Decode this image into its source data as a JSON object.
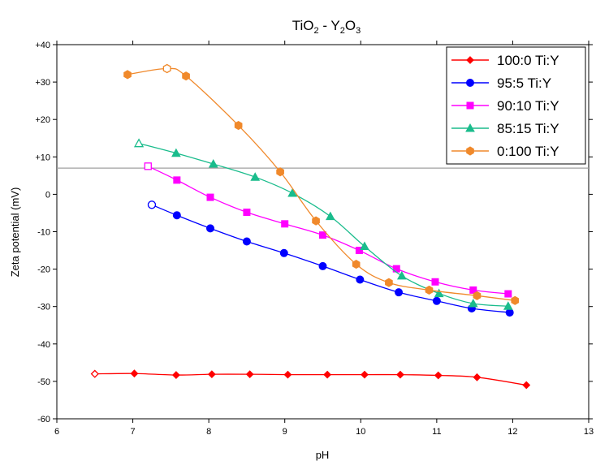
{
  "chart_data": {
    "type": "line",
    "title": {
      "base1": "TiO",
      "sub1": "2",
      "mid": " - Y",
      "sub2": "2",
      "mid2": "O",
      "sub3": "3"
    },
    "xlabel": "pH",
    "ylabel": "Zeta potential (mV)",
    "xlim": [
      6,
      13
    ],
    "ylim": [
      -60,
      40
    ],
    "xticks": [
      6,
      7,
      8,
      9,
      10,
      11,
      12,
      13
    ],
    "yticks": [
      -60,
      -50,
      -40,
      -30,
      -20,
      -10,
      0,
      10,
      20,
      30,
      40
    ],
    "ytick_labels": [
      "-60",
      "-50",
      "-40",
      "-30",
      "-20",
      "-10",
      "0",
      "+10",
      "+20",
      "+30",
      "+40"
    ],
    "reference_line_y": 7,
    "legend_position": "top-right",
    "series": [
      {
        "name": "100:0 Ti:Y",
        "color": "#ff0000",
        "marker": "diamond",
        "x": [
          6.5,
          7.02,
          7.57,
          8.04,
          8.54,
          9.04,
          9.56,
          10.05,
          10.52,
          11.02,
          11.53,
          12.18
        ],
        "y": [
          -48.0,
          -47.9,
          -48.3,
          -48.1,
          -48.1,
          -48.2,
          -48.2,
          -48.2,
          -48.2,
          -48.4,
          -48.9,
          -51.0
        ],
        "open_first": true
      },
      {
        "name": "95:5 Ti:Y",
        "color": "#0000ff",
        "marker": "circle",
        "x": [
          7.25,
          7.58,
          8.02,
          8.5,
          8.99,
          9.5,
          9.99,
          10.5,
          11.0,
          11.46,
          11.96
        ],
        "y": [
          -2.8,
          -5.6,
          -9.1,
          -12.6,
          -15.7,
          -19.2,
          -22.8,
          -26.2,
          -28.5,
          -30.5,
          -31.6
        ],
        "open_first": true
      },
      {
        "name": "90:10 Ti:Y",
        "color": "#ff00ff",
        "marker": "square",
        "x": [
          7.2,
          7.58,
          8.02,
          8.5,
          9.0,
          9.5,
          9.98,
          10.47,
          10.98,
          11.48,
          11.94
        ],
        "y": [
          7.5,
          3.8,
          -0.8,
          -4.8,
          -7.9,
          -10.9,
          -15.0,
          -19.9,
          -23.4,
          -25.6,
          -26.6
        ],
        "open_first": true
      },
      {
        "name": "85:15 Ti:Y",
        "color": "#1abc8c",
        "marker": "triangle",
        "x": [
          7.08,
          7.57,
          8.06,
          8.61,
          9.1,
          9.6,
          10.05,
          10.54,
          11.03,
          11.48,
          11.94
        ],
        "y": [
          13.6,
          11.0,
          8.1,
          4.6,
          0.3,
          -5.9,
          -13.9,
          -21.8,
          -26.5,
          -29.2,
          -29.9
        ],
        "open_first": true
      },
      {
        "name": "0:100 Ti:Y",
        "color": "#f0892b",
        "marker": "hexagon",
        "x": [
          6.93,
          7.45,
          7.7,
          8.39,
          8.94,
          9.41,
          9.94,
          10.37,
          10.9,
          11.53,
          12.03
        ],
        "y": [
          32.0,
          33.6,
          31.6,
          18.4,
          6.0,
          -7.1,
          -18.7,
          -23.6,
          -25.6,
          -27.1,
          -28.4
        ],
        "open_index": 1
      }
    ]
  }
}
